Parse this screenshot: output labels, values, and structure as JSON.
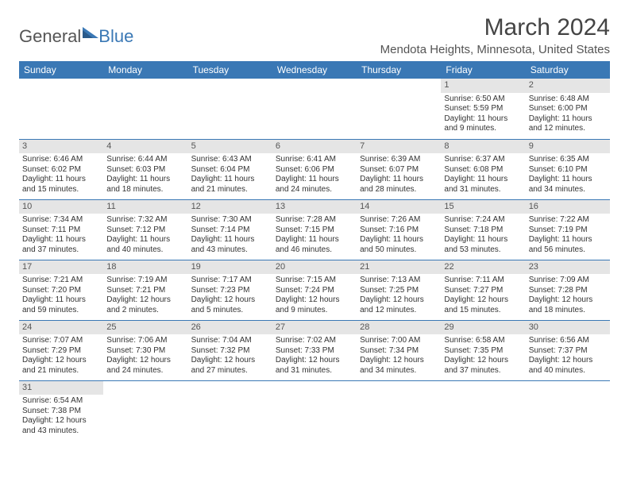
{
  "logo": {
    "part1": "General",
    "part2": "Blue"
  },
  "title": "March 2024",
  "location": "Mendota Heights, Minnesota, United States",
  "colors": {
    "header_bg": "#3a78b5",
    "header_text": "#ffffff",
    "daynum_bg": "#e5e5e5",
    "row_divider": "#3a78b5",
    "body_text": "#333333"
  },
  "weekdays": [
    "Sunday",
    "Monday",
    "Tuesday",
    "Wednesday",
    "Thursday",
    "Friday",
    "Saturday"
  ],
  "weeks": [
    [
      null,
      null,
      null,
      null,
      null,
      {
        "d": "1",
        "sr": "Sunrise: 6:50 AM",
        "ss": "Sunset: 5:59 PM",
        "dl": "Daylight: 11 hours and 9 minutes."
      },
      {
        "d": "2",
        "sr": "Sunrise: 6:48 AM",
        "ss": "Sunset: 6:00 PM",
        "dl": "Daylight: 11 hours and 12 minutes."
      }
    ],
    [
      {
        "d": "3",
        "sr": "Sunrise: 6:46 AM",
        "ss": "Sunset: 6:02 PM",
        "dl": "Daylight: 11 hours and 15 minutes."
      },
      {
        "d": "4",
        "sr": "Sunrise: 6:44 AM",
        "ss": "Sunset: 6:03 PM",
        "dl": "Daylight: 11 hours and 18 minutes."
      },
      {
        "d": "5",
        "sr": "Sunrise: 6:43 AM",
        "ss": "Sunset: 6:04 PM",
        "dl": "Daylight: 11 hours and 21 minutes."
      },
      {
        "d": "6",
        "sr": "Sunrise: 6:41 AM",
        "ss": "Sunset: 6:06 PM",
        "dl": "Daylight: 11 hours and 24 minutes."
      },
      {
        "d": "7",
        "sr": "Sunrise: 6:39 AM",
        "ss": "Sunset: 6:07 PM",
        "dl": "Daylight: 11 hours and 28 minutes."
      },
      {
        "d": "8",
        "sr": "Sunrise: 6:37 AM",
        "ss": "Sunset: 6:08 PM",
        "dl": "Daylight: 11 hours and 31 minutes."
      },
      {
        "d": "9",
        "sr": "Sunrise: 6:35 AM",
        "ss": "Sunset: 6:10 PM",
        "dl": "Daylight: 11 hours and 34 minutes."
      }
    ],
    [
      {
        "d": "10",
        "sr": "Sunrise: 7:34 AM",
        "ss": "Sunset: 7:11 PM",
        "dl": "Daylight: 11 hours and 37 minutes."
      },
      {
        "d": "11",
        "sr": "Sunrise: 7:32 AM",
        "ss": "Sunset: 7:12 PM",
        "dl": "Daylight: 11 hours and 40 minutes."
      },
      {
        "d": "12",
        "sr": "Sunrise: 7:30 AM",
        "ss": "Sunset: 7:14 PM",
        "dl": "Daylight: 11 hours and 43 minutes."
      },
      {
        "d": "13",
        "sr": "Sunrise: 7:28 AM",
        "ss": "Sunset: 7:15 PM",
        "dl": "Daylight: 11 hours and 46 minutes."
      },
      {
        "d": "14",
        "sr": "Sunrise: 7:26 AM",
        "ss": "Sunset: 7:16 PM",
        "dl": "Daylight: 11 hours and 50 minutes."
      },
      {
        "d": "15",
        "sr": "Sunrise: 7:24 AM",
        "ss": "Sunset: 7:18 PM",
        "dl": "Daylight: 11 hours and 53 minutes."
      },
      {
        "d": "16",
        "sr": "Sunrise: 7:22 AM",
        "ss": "Sunset: 7:19 PM",
        "dl": "Daylight: 11 hours and 56 minutes."
      }
    ],
    [
      {
        "d": "17",
        "sr": "Sunrise: 7:21 AM",
        "ss": "Sunset: 7:20 PM",
        "dl": "Daylight: 11 hours and 59 minutes."
      },
      {
        "d": "18",
        "sr": "Sunrise: 7:19 AM",
        "ss": "Sunset: 7:21 PM",
        "dl": "Daylight: 12 hours and 2 minutes."
      },
      {
        "d": "19",
        "sr": "Sunrise: 7:17 AM",
        "ss": "Sunset: 7:23 PM",
        "dl": "Daylight: 12 hours and 5 minutes."
      },
      {
        "d": "20",
        "sr": "Sunrise: 7:15 AM",
        "ss": "Sunset: 7:24 PM",
        "dl": "Daylight: 12 hours and 9 minutes."
      },
      {
        "d": "21",
        "sr": "Sunrise: 7:13 AM",
        "ss": "Sunset: 7:25 PM",
        "dl": "Daylight: 12 hours and 12 minutes."
      },
      {
        "d": "22",
        "sr": "Sunrise: 7:11 AM",
        "ss": "Sunset: 7:27 PM",
        "dl": "Daylight: 12 hours and 15 minutes."
      },
      {
        "d": "23",
        "sr": "Sunrise: 7:09 AM",
        "ss": "Sunset: 7:28 PM",
        "dl": "Daylight: 12 hours and 18 minutes."
      }
    ],
    [
      {
        "d": "24",
        "sr": "Sunrise: 7:07 AM",
        "ss": "Sunset: 7:29 PM",
        "dl": "Daylight: 12 hours and 21 minutes."
      },
      {
        "d": "25",
        "sr": "Sunrise: 7:06 AM",
        "ss": "Sunset: 7:30 PM",
        "dl": "Daylight: 12 hours and 24 minutes."
      },
      {
        "d": "26",
        "sr": "Sunrise: 7:04 AM",
        "ss": "Sunset: 7:32 PM",
        "dl": "Daylight: 12 hours and 27 minutes."
      },
      {
        "d": "27",
        "sr": "Sunrise: 7:02 AM",
        "ss": "Sunset: 7:33 PM",
        "dl": "Daylight: 12 hours and 31 minutes."
      },
      {
        "d": "28",
        "sr": "Sunrise: 7:00 AM",
        "ss": "Sunset: 7:34 PM",
        "dl": "Daylight: 12 hours and 34 minutes."
      },
      {
        "d": "29",
        "sr": "Sunrise: 6:58 AM",
        "ss": "Sunset: 7:35 PM",
        "dl": "Daylight: 12 hours and 37 minutes."
      },
      {
        "d": "30",
        "sr": "Sunrise: 6:56 AM",
        "ss": "Sunset: 7:37 PM",
        "dl": "Daylight: 12 hours and 40 minutes."
      }
    ],
    [
      {
        "d": "31",
        "sr": "Sunrise: 6:54 AM",
        "ss": "Sunset: 7:38 PM",
        "dl": "Daylight: 12 hours and 43 minutes."
      },
      null,
      null,
      null,
      null,
      null,
      null
    ]
  ]
}
